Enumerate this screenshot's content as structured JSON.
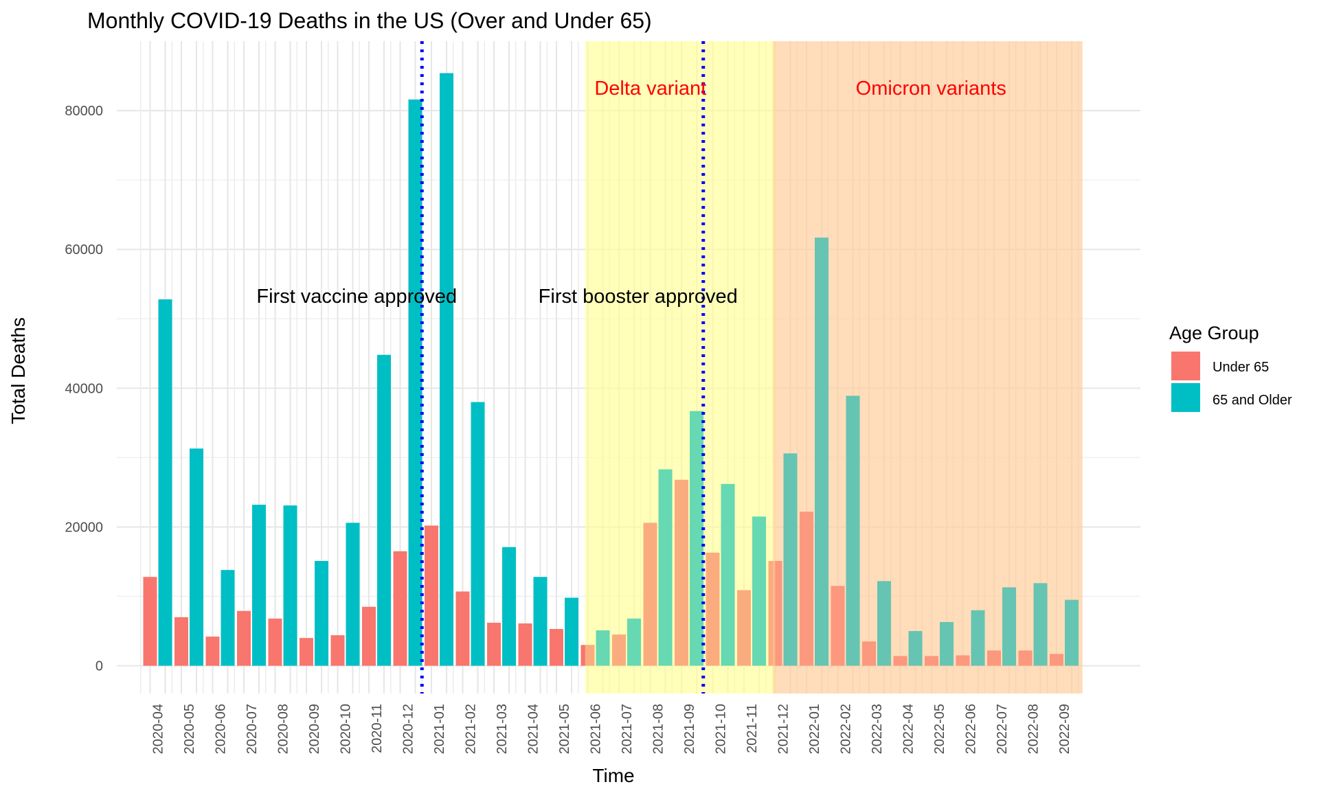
{
  "chart_data": {
    "type": "bar",
    "title": "Monthly COVID-19 Deaths in the US (Over and Under 65)",
    "xlabel": "Time",
    "ylabel": "Total Deaths",
    "ylim": [
      -4000,
      90000
    ],
    "yticks": [
      0,
      20000,
      40000,
      60000,
      80000
    ],
    "grid": true,
    "legend": {
      "title": "Age Group",
      "position": "right"
    },
    "categories": [
      "2020-04",
      "2020-05",
      "2020-06",
      "2020-07",
      "2020-08",
      "2020-09",
      "2020-10",
      "2020-11",
      "2020-12",
      "2021-01",
      "2021-02",
      "2021-03",
      "2021-04",
      "2021-05",
      "2021-06",
      "2021-07",
      "2021-08",
      "2021-09",
      "2021-10",
      "2021-11",
      "2021-12",
      "2022-01",
      "2022-02",
      "2022-03",
      "2022-04",
      "2022-05",
      "2022-06",
      "2022-07",
      "2022-08",
      "2022-09"
    ],
    "series": [
      {
        "name": "Under 65",
        "color": "#F8766D",
        "values": [
          12800,
          7000,
          4200,
          7900,
          6800,
          4000,
          4400,
          8500,
          16500,
          20200,
          10700,
          6200,
          6100,
          5300,
          3000,
          4500,
          20600,
          26800,
          16300,
          10900,
          15100,
          22200,
          11500,
          3500,
          1400,
          1400,
          1500,
          2200,
          2200,
          1700
        ]
      },
      {
        "name": "65 and Older",
        "color": "#00BFC4",
        "values": [
          52800,
          31300,
          13800,
          23200,
          23100,
          15100,
          20600,
          44800,
          81600,
          85400,
          38000,
          17100,
          12800,
          9800,
          5100,
          6800,
          28300,
          36700,
          26200,
          21500,
          30600,
          61700,
          38900,
          12200,
          5000,
          6300,
          8000,
          11300,
          11900,
          9500
        ]
      }
    ],
    "shaded_regions": [
      {
        "label": "Delta variant",
        "start": "2021-06",
        "end": "2021-12",
        "color": "#FFFF99",
        "label_color": "#FF0000"
      },
      {
        "label": "Omicron variants",
        "start": "2021-12",
        "end": "2022-09",
        "color": "#FFCC99",
        "label_color": "#FF0000"
      }
    ],
    "vertical_lines": [
      {
        "label": "First vaccine approved",
        "at": "2020-12",
        "color": "#0000FF",
        "style": "dotted"
      },
      {
        "label": "First booster approved",
        "at": "2021-09",
        "color": "#0000FF",
        "style": "dotted"
      }
    ]
  }
}
